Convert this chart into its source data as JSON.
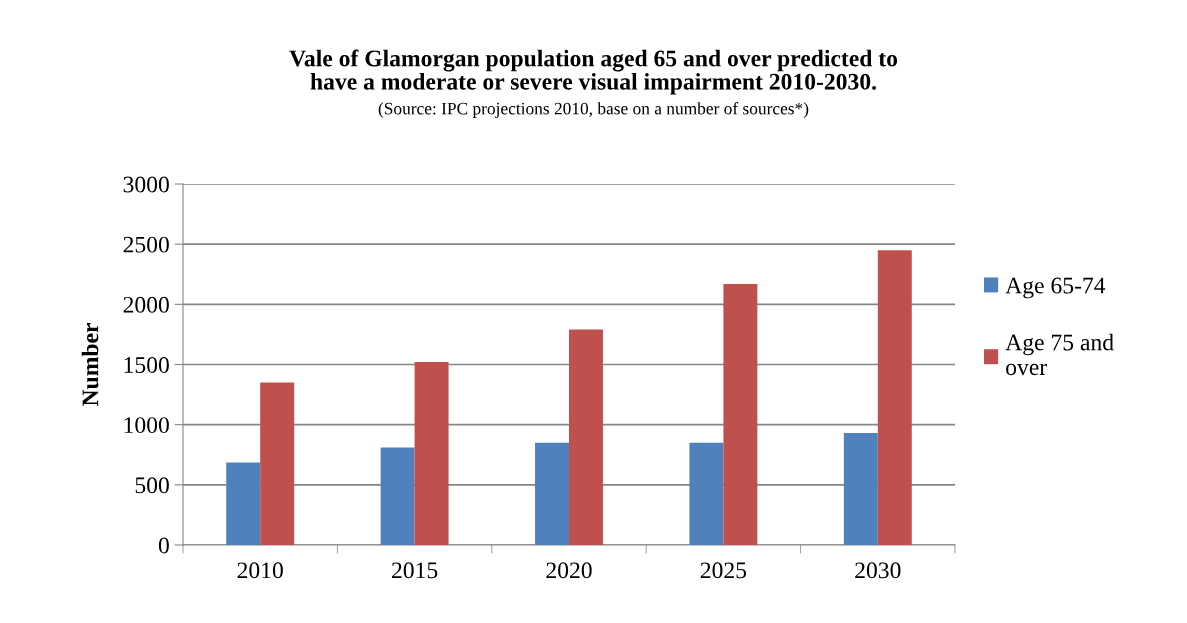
{
  "chart_data": {
    "type": "bar",
    "title": "Vale of Glamorgan population aged 65 and over predicted to\nhave a moderate or severe visual impairment 2010-2030.",
    "subtitle": "(Source: IPC projections 2010, base on a number of sources*)",
    "ylabel": "Number",
    "categories": [
      "2010",
      "2015",
      "2020",
      "2025",
      "2030"
    ],
    "series": [
      {
        "name": "Age 65-74",
        "color": "#4f81bd",
        "values": [
          685,
          810,
          850,
          850,
          930
        ]
      },
      {
        "name": "Age 75 and\nover",
        "color": "#c0504d",
        "values": [
          1350,
          1520,
          1790,
          2170,
          2450
        ]
      }
    ],
    "ylim": [
      0,
      3000
    ],
    "yticks": [
      0,
      500,
      1000,
      1500,
      2000,
      2500,
      3000
    ],
    "grid": "y",
    "legend": "right"
  }
}
